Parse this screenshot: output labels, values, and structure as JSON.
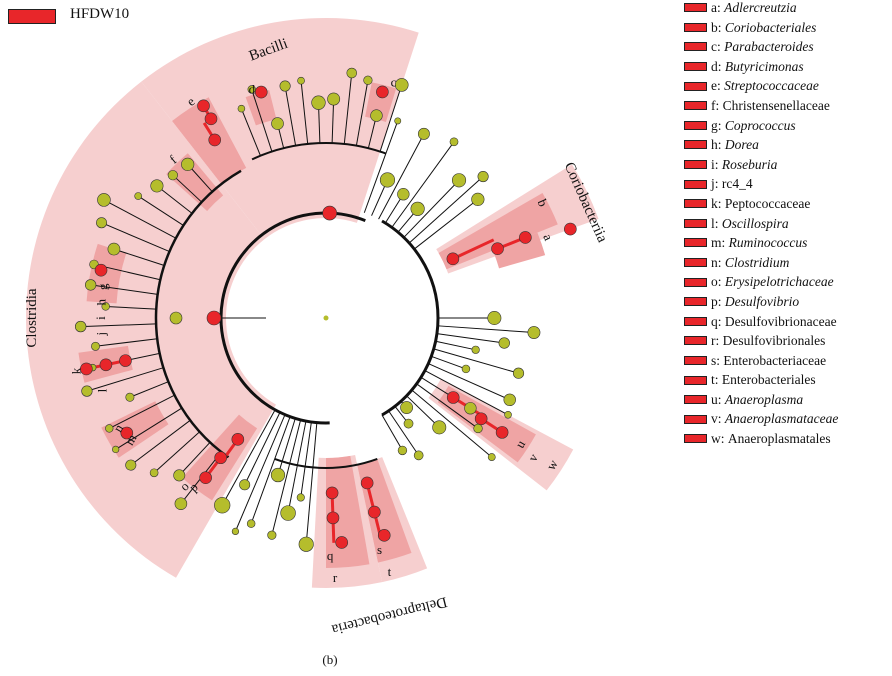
{
  "legend": {
    "group_label": "HFDW10",
    "group_color": "#e8262a"
  },
  "colors": {
    "enriched_node": "#e8262a",
    "other_node": "#b5bd2c",
    "shade_light": "#f6cfcf",
    "shade_medium": "#efa4a4",
    "shade_dark": "#e57b7b"
  },
  "clade_labels": {
    "bacilli": "Bacilli",
    "clostridia": "Clostridia",
    "coriobacteriia": "Coriobacteriia",
    "deltaproteobacteria": "Deltaproteobacteria"
  },
  "key": [
    {
      "letter": "a",
      "taxon": "Adlercreutzia",
      "italic": true
    },
    {
      "letter": "b",
      "taxon": "Coriobacteriales",
      "italic": true
    },
    {
      "letter": "c",
      "taxon": "Parabacteroides",
      "italic": true
    },
    {
      "letter": "d",
      "taxon": "Butyricimonas",
      "italic": true
    },
    {
      "letter": "e",
      "taxon": "Streptococcaceae",
      "italic": true
    },
    {
      "letter": "f",
      "taxon": "Christensenellaceae",
      "italic": false
    },
    {
      "letter": "g",
      "taxon": "Coprococcus",
      "italic": true
    },
    {
      "letter": "h",
      "taxon": "Dorea",
      "italic": true
    },
    {
      "letter": "i",
      "taxon": "Roseburia",
      "italic": true
    },
    {
      "letter": "j",
      "taxon": "rc4_4",
      "italic": false
    },
    {
      "letter": "k",
      "taxon": "Peptococcaceae",
      "italic": false
    },
    {
      "letter": "l",
      "taxon": "Oscillospira",
      "italic": true
    },
    {
      "letter": "m",
      "taxon": "Ruminococcus",
      "italic": true
    },
    {
      "letter": "n",
      "taxon": "Clostridium",
      "italic": true
    },
    {
      "letter": "o",
      "taxon": "Erysipelotrichaceae",
      "italic": true
    },
    {
      "letter": "p",
      "taxon": "Desulfovibrio",
      "italic": true
    },
    {
      "letter": "q",
      "taxon": "Desulfovibrionaceae",
      "italic": false
    },
    {
      "letter": "r",
      "taxon": "Desulfovibrionales",
      "italic": false
    },
    {
      "letter": "s",
      "taxon": "Enterobacteriaceae",
      "italic": false
    },
    {
      "letter": "t",
      "taxon": "Enterobacteriales",
      "italic": false
    },
    {
      "letter": "u",
      "taxon": "Anaeroplasma",
      "italic": true
    },
    {
      "letter": "v",
      "taxon": "Anaeroplasmataceae",
      "italic": true
    },
    {
      "letter": "w",
      "taxon": "Anaeroplasmatales",
      "italic": false
    }
  ],
  "caption": "(b)"
}
